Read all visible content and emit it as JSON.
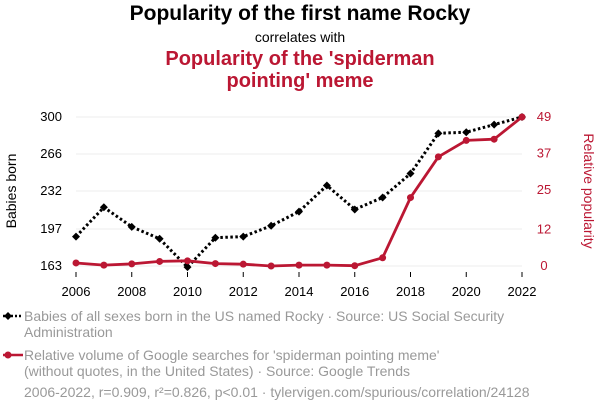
{
  "header": {
    "title": "Popularity of the first name Rocky",
    "connector": "correlates with",
    "subtitle_line1": "Popularity of the 'spiderman",
    "subtitle_line2": "pointing' meme"
  },
  "chart_data": {
    "type": "line",
    "x": [
      2006,
      2007,
      2008,
      2009,
      2010,
      2011,
      2012,
      2013,
      2014,
      2015,
      2016,
      2017,
      2018,
      2019,
      2020,
      2021,
      2022
    ],
    "xticks": [
      "2006",
      "2008",
      "2010",
      "2012",
      "2014",
      "2016",
      "2018",
      "2020",
      "2022"
    ],
    "y_left": {
      "label": "Babies born",
      "ticks": [
        "300",
        "266",
        "232",
        "197",
        "163"
      ],
      "tick_values": [
        300,
        266,
        232,
        197,
        163
      ],
      "range": [
        163,
        300
      ],
      "color": "#000000"
    },
    "y_right": {
      "label": "Relative popularity",
      "ticks": [
        "49",
        "37",
        "25",
        "12",
        "0"
      ],
      "tick_values": [
        49,
        37,
        25,
        12,
        0
      ],
      "range": [
        0,
        49
      ],
      "color": "#bb1733"
    },
    "series": [
      {
        "name": "Babies of all sexes born in the US named Rocky",
        "axis": "left",
        "style": "dotted",
        "marker": "diamond",
        "color": "#000000",
        "values": [
          190,
          217,
          199,
          188,
          162,
          189,
          190,
          200,
          213,
          237,
          215,
          226,
          248,
          285,
          286,
          293,
          300
        ]
      },
      {
        "name": "Relative volume of Google searches for 'spiderman pointing meme'",
        "axis": "right",
        "style": "solid",
        "marker": "circle",
        "color": "#bb1733",
        "values": [
          1.0,
          0.3,
          0.7,
          1.5,
          1.7,
          0.8,
          0.6,
          0.0,
          0.3,
          0.3,
          0.1,
          2.7,
          22.5,
          35.9,
          41.3,
          41.7,
          49.0
        ]
      }
    ],
    "grid": true
  },
  "legend": {
    "item1_line1": "Babies of all sexes born in the US named Rocky · Source: US Social Security",
    "item1_line2": "Administration",
    "item2_line1": "Relative volume of Google searches for 'spiderman pointing meme'",
    "item2_line2": "(without quotes, in the United States) · Source: Google Trends"
  },
  "footer": "2006-2022, r=0.909, r²=0.826, p<0.01 · tylervigen.com/spurious/correlation/24128"
}
